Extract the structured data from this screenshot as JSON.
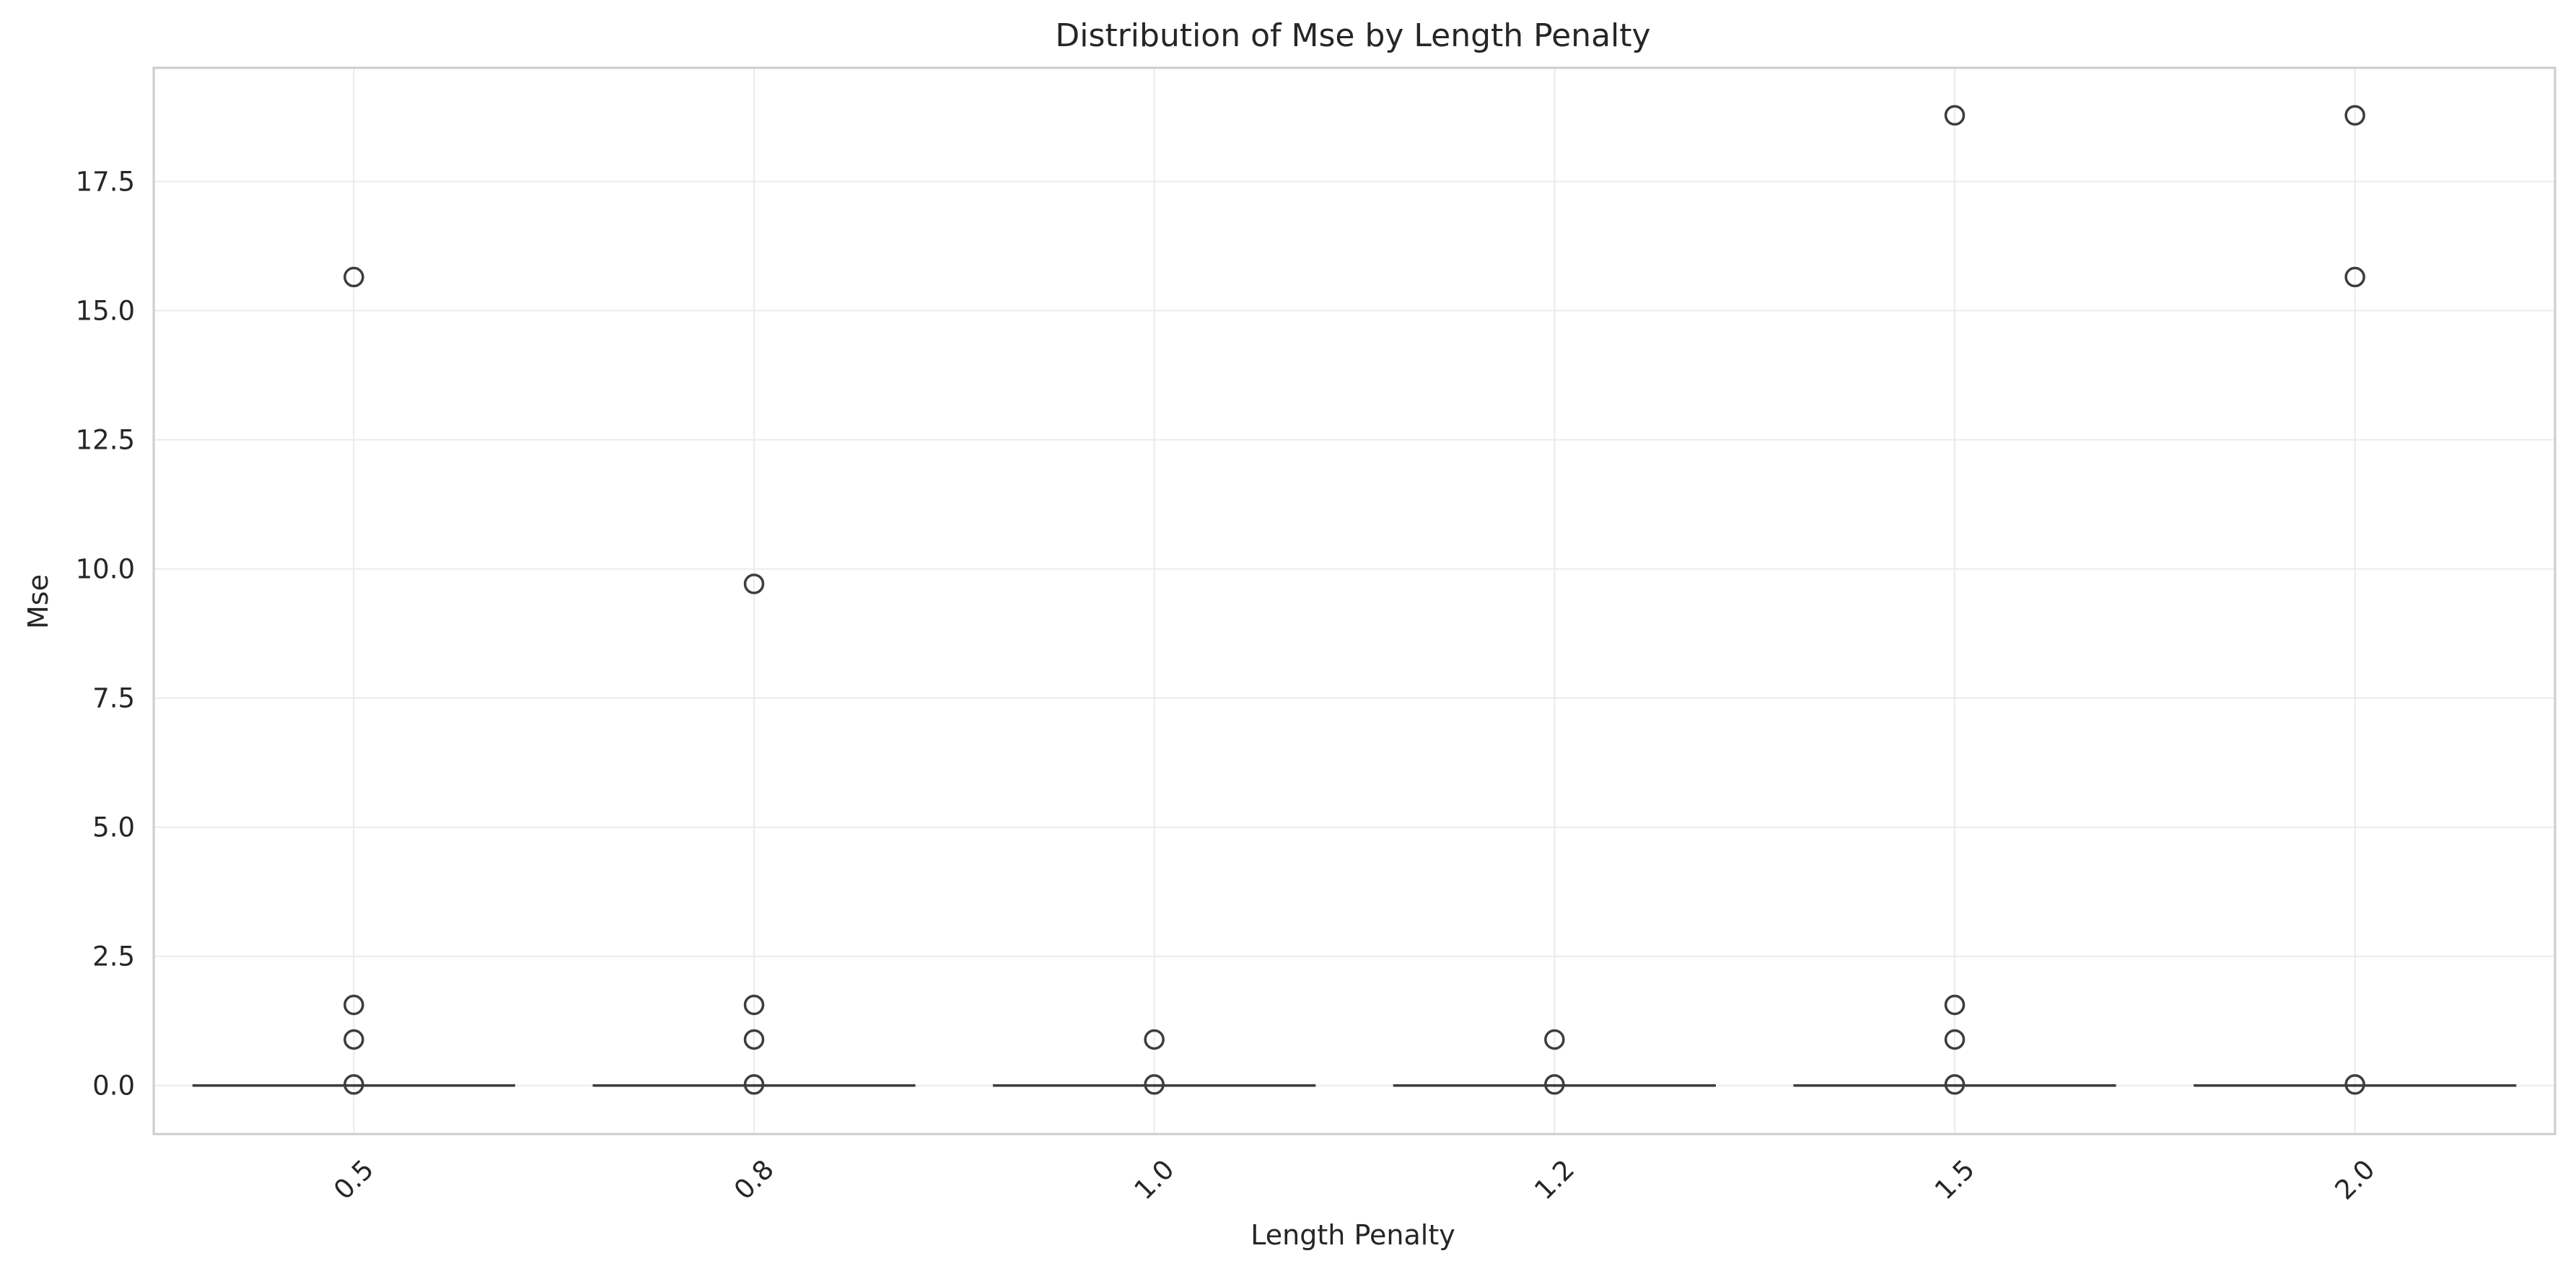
{
  "chart_data": {
    "type": "box",
    "title": "Distribution of Mse by Length Penalty",
    "xlabel": "Length Penalty",
    "ylabel": "Mse",
    "categories": [
      "0.5",
      "0.8",
      "1.0",
      "1.2",
      "1.5",
      "2.0"
    ],
    "ylim": [
      -0.94,
      19.7
    ],
    "yticks": [
      0.0,
      2.5,
      5.0,
      7.5,
      10.0,
      12.5,
      15.0,
      17.5
    ],
    "ytick_labels": [
      "0.0",
      "2.5",
      "5.0",
      "7.5",
      "10.0",
      "12.5",
      "15.0",
      "17.5"
    ],
    "xtick_rotation": 45,
    "grid": true,
    "boxes": [
      {
        "category": "0.5",
        "q1": 0.0,
        "median": 0.0,
        "q3": 0.0,
        "whisker_low": 0.0,
        "whisker_high": 0.0,
        "fliers": [
          15.65,
          1.56,
          0.89,
          0.02
        ]
      },
      {
        "category": "0.8",
        "q1": 0.0,
        "median": 0.0,
        "q3": 0.0,
        "whisker_low": 0.0,
        "whisker_high": 0.0,
        "fliers": [
          9.71,
          1.56,
          0.89,
          0.02
        ]
      },
      {
        "category": "1.0",
        "q1": 0.0,
        "median": 0.0,
        "q3": 0.0,
        "whisker_low": 0.0,
        "whisker_high": 0.0,
        "fliers": [
          0.89,
          0.02
        ]
      },
      {
        "category": "1.2",
        "q1": 0.0,
        "median": 0.0,
        "q3": 0.0,
        "whisker_low": 0.0,
        "whisker_high": 0.0,
        "fliers": [
          0.89,
          0.02
        ]
      },
      {
        "category": "1.5",
        "q1": 0.0,
        "median": 0.0,
        "q3": 0.0,
        "whisker_low": 0.0,
        "whisker_high": 0.0,
        "fliers": [
          18.78,
          1.56,
          0.89,
          0.02
        ]
      },
      {
        "category": "2.0",
        "q1": 0.0,
        "median": 0.0,
        "q3": 0.0,
        "whisker_low": 0.0,
        "whisker_high": 0.0,
        "fliers": [
          18.78,
          15.65,
          0.02
        ]
      }
    ],
    "colors": {
      "box_line": "#3d3d3d",
      "grid": "#ebebeb",
      "frame": "#cccccc",
      "text": "#262626"
    }
  }
}
